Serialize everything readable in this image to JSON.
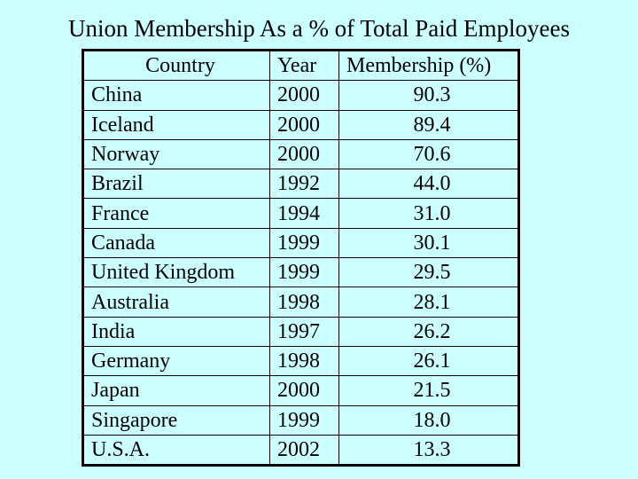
{
  "title": "Union Membership As a % of Total Paid Employees",
  "table": {
    "headers": {
      "country": "Country",
      "year": "Year",
      "membership": "Membership (%)"
    },
    "rows": [
      {
        "country": "China",
        "year": "2000",
        "membership": "90.3"
      },
      {
        "country": "Iceland",
        "year": "2000",
        "membership": "89.4"
      },
      {
        "country": "Norway",
        "year": "2000",
        "membership": "70.6"
      },
      {
        "country": "Brazil",
        "year": "1992",
        "membership": "44.0"
      },
      {
        "country": "France",
        "year": "1994",
        "membership": "31.0"
      },
      {
        "country": "Canada",
        "year": "1999",
        "membership": "30.1"
      },
      {
        "country": "United Kingdom",
        "year": "1999",
        "membership": "29.5"
      },
      {
        "country": "Australia",
        "year": "1998",
        "membership": "28.1"
      },
      {
        "country": "India",
        "year": "1997",
        "membership": "26.2"
      },
      {
        "country": "Germany",
        "year": "1998",
        "membership": "26.1"
      },
      {
        "country": "Japan",
        "year": "2000",
        "membership": "21.5"
      },
      {
        "country": "Singapore",
        "year": "1999",
        "membership": "18.0"
      },
      {
        "country": "U.S.A.",
        "year": "2002",
        "membership": "13.3"
      }
    ]
  },
  "colors": {
    "background": "#ccffff",
    "text": "#000000",
    "grid": "#000000"
  }
}
